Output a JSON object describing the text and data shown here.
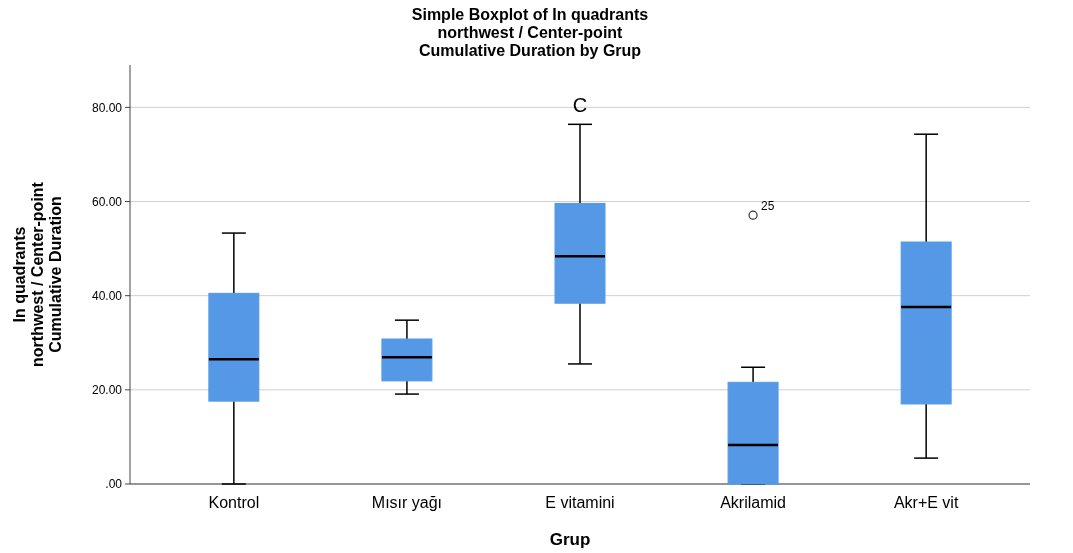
{
  "chart_data": {
    "type": "box",
    "title": "Simple Boxplot of In quadrants\nnorthwest / Center-point\nCumulative Duration by Grup",
    "xlabel": "Grup",
    "ylabel": "In quadrants\nnorthwest / Center-point\nCumulative Duration",
    "categories": [
      "Kontrol",
      "Mısır yağı",
      "E vitamini",
      "Akrilamid",
      "Akr+E vit"
    ],
    "color": "#5599e6",
    "boxes": [
      {
        "low": 0,
        "q1": 17.6,
        "median": 26.5,
        "q3": 40.5,
        "high": 53.3
      },
      {
        "low": 19.1,
        "q1": 21.9,
        "median": 26.9,
        "q3": 30.8,
        "high": 34.8
      },
      {
        "low": 25.5,
        "q1": 38.4,
        "median": 48.4,
        "q3": 59.6,
        "high": 76.4
      },
      {
        "low": 0,
        "q1": 0,
        "median": 8.3,
        "q3": 21.6,
        "high": 24.8,
        "outliers": [
          57.1
        ]
      },
      {
        "low": 5.5,
        "q1": 17.0,
        "median": 37.6,
        "q3": 51.4,
        "high": 74.3
      }
    ],
    "ylim": [
      0,
      89
    ],
    "yticks": [
      {
        "value": 0,
        "label": ".00"
      },
      {
        "value": 20,
        "label": "20.00"
      },
      {
        "value": 40,
        "label": "40.00"
      },
      {
        "value": 60,
        "label": "60.00"
      },
      {
        "value": 80,
        "label": "80.00"
      }
    ],
    "grid": "y",
    "marker": "circle",
    "annotations": [
      "25",
      "C"
    ]
  }
}
